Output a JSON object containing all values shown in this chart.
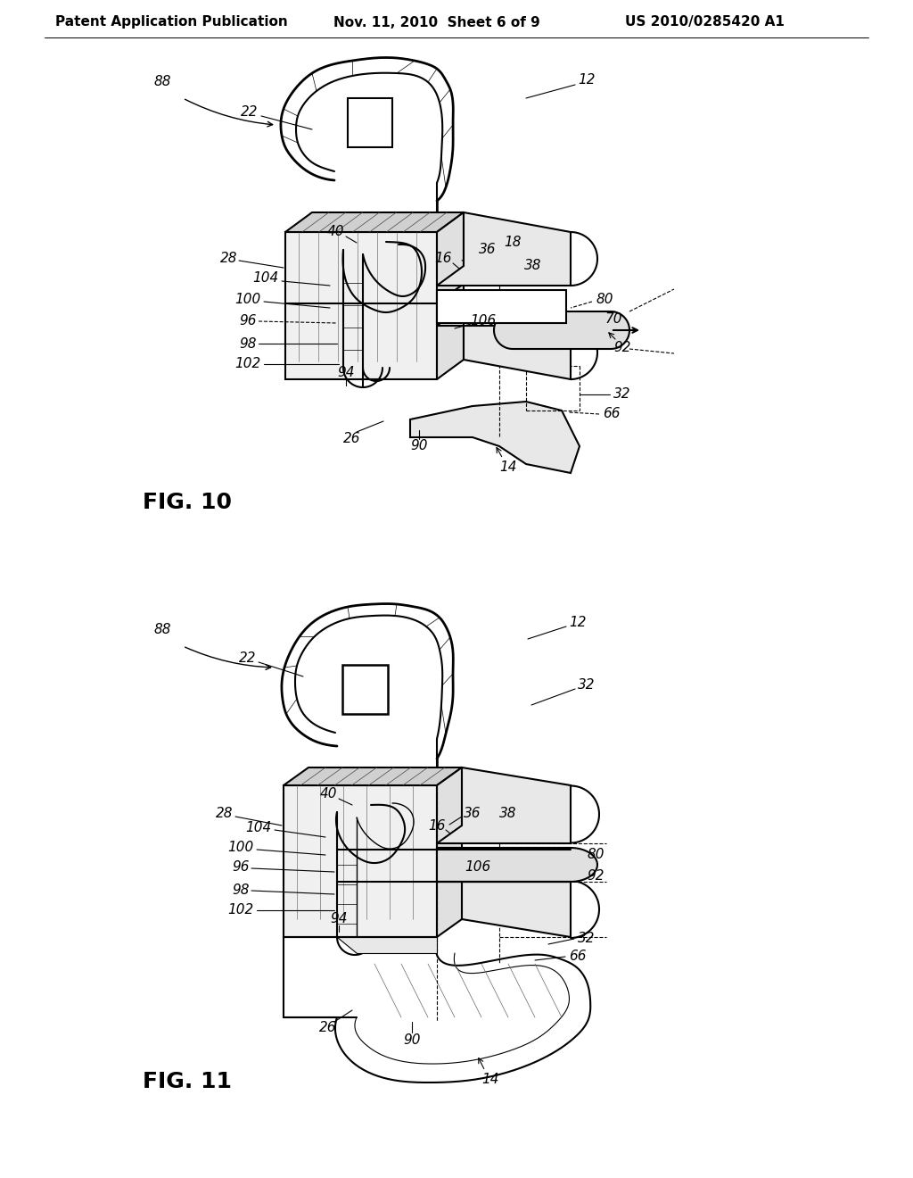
{
  "background_color": "#ffffff",
  "header_left": "Patent Application Publication",
  "header_center": "Nov. 11, 2010  Sheet 6 of 9",
  "header_right": "US 2010/0285420 A1",
  "fig10_label": "FIG. 10",
  "fig11_label": "FIG. 11",
  "lw_main": 1.5,
  "lw_thin": 0.8,
  "lw_hatch": 0.5,
  "fig_width": 10.24,
  "fig_height": 13.2,
  "dpi": 100
}
